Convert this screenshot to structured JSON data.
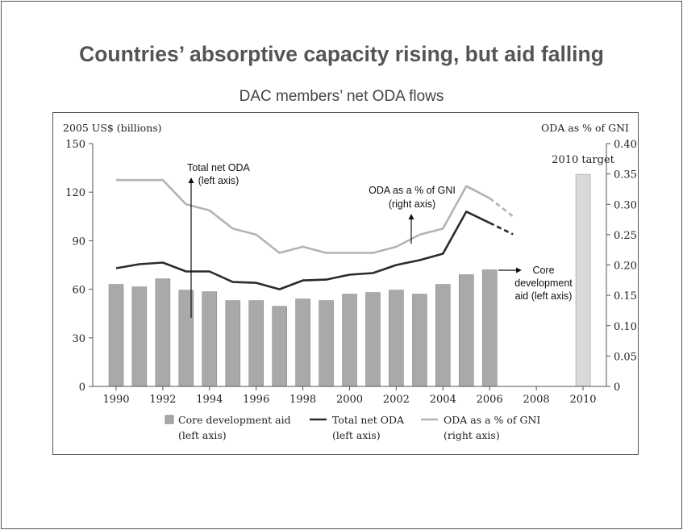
{
  "slide": {
    "title": "Countries’ absorptive capacity rising, but aid falling",
    "subtitle": "DAC members’ net ODA flows"
  },
  "chart_data": {
    "type": "bar",
    "x": [
      1990,
      1991,
      1992,
      1993,
      1994,
      1995,
      1996,
      1997,
      1998,
      1999,
      2000,
      2001,
      2002,
      2003,
      2004,
      2005,
      2006
    ],
    "xticks": [
      "1990",
      "1992",
      "1994",
      "1996",
      "1998",
      "2000",
      "2002",
      "2004",
      "2006",
      "2008",
      "2010"
    ],
    "xlim": [
      1989,
      2011
    ],
    "ylabel_left": "2005 US$ (billions)",
    "ylabel_right": "ODA as % of GNI",
    "ylim_left": [
      0,
      150
    ],
    "yticks_left": [
      "0",
      "30",
      "60",
      "90",
      "120",
      "150"
    ],
    "ylim_right": [
      0,
      0.4
    ],
    "yticks_right": [
      "0",
      "0.05",
      "0.10",
      "0.15",
      "0.20",
      "0.25",
      "0.30",
      "0.35",
      "0.40"
    ],
    "colors": {
      "bars": "#a9a9a9",
      "total_line": "#2b2b2b",
      "pct_line": "#b3b3b3",
      "target_bar": "#d9d9d9",
      "axis": "#555555",
      "text": "#222222"
    },
    "series": [
      {
        "name": "Core development aid",
        "axis": "left",
        "kind": "bar",
        "values": [
          63,
          61.5,
          66.5,
          59.5,
          58.5,
          53,
          53,
          49.5,
          54,
          53,
          57,
          58,
          59.5,
          57,
          63,
          69,
          72
        ]
      },
      {
        "name": "Total net ODA",
        "axis": "left",
        "kind": "line",
        "values": [
          73,
          75.5,
          76.5,
          71,
          71,
          64.5,
          64,
          60,
          65.5,
          66,
          69,
          70,
          75,
          78,
          82,
          108,
          101
        ],
        "projection": {
          "x": [
            2006,
            2007
          ],
          "values": [
            101,
            94
          ]
        }
      },
      {
        "name": "ODA as a % of GNI",
        "axis": "right",
        "kind": "line",
        "values": [
          0.34,
          0.34,
          0.34,
          0.3,
          0.29,
          0.26,
          0.25,
          0.22,
          0.23,
          0.22,
          0.22,
          0.22,
          0.23,
          0.25,
          0.26,
          0.33,
          0.31
        ],
        "projection": {
          "x": [
            2006,
            2007
          ],
          "values": [
            0.31,
            0.28
          ]
        }
      }
    ],
    "target": {
      "x": 2010,
      "value": 131,
      "label": "2010 target"
    },
    "annotations": {
      "total": [
        "Total net ODA",
        "(left axis)"
      ],
      "pct": [
        "ODA as a % of GNI",
        "(right axis)"
      ],
      "core": [
        "Core",
        "development",
        "aid (left axis)"
      ]
    },
    "legend": [
      {
        "kind": "bar",
        "line1": "Core development aid",
        "line2": "(left axis)"
      },
      {
        "kind": "dark-line",
        "line1": "Total net ODA",
        "line2": "(left axis)"
      },
      {
        "kind": "light-line",
        "line1": "ODA as a % of GNI",
        "line2": "(right axis)"
      }
    ],
    "legend_position": "bottom"
  }
}
